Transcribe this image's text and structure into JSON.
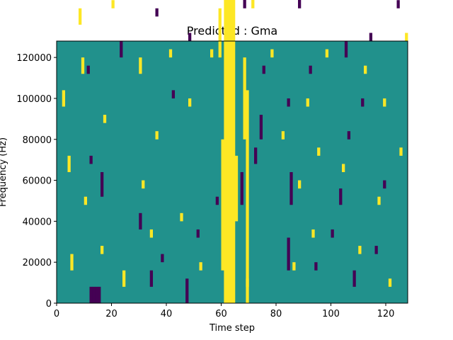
{
  "chart_data": {
    "type": "heatmap",
    "title": "Predicted : Gma",
    "xlabel": "Time step",
    "ylabel": "Frequency (Hz)",
    "xlim": [
      0,
      128
    ],
    "ylim": [
      0,
      128000
    ],
    "x_ticks": [
      0,
      20,
      40,
      60,
      80,
      100,
      120
    ],
    "y_ticks": [
      0,
      20000,
      40000,
      60000,
      80000,
      100000,
      120000
    ],
    "x_tick_labels": [
      "0",
      "20",
      "40",
      "60",
      "80",
      "100",
      "120"
    ],
    "y_tick_labels": [
      "0",
      "20000",
      "40000",
      "60000",
      "80000",
      "100000",
      "120000"
    ],
    "grid": false,
    "legend": "none",
    "value_levels": [
      -1,
      0,
      1
    ],
    "colors": {
      "-1": "#440154",
      "0": "#21918c",
      "1": "#fde725"
    },
    "background_value": 0,
    "bin_height_hz": 4000,
    "cells": [
      [
        61,
        0,
        64,
        1
      ],
      [
        62,
        0,
        64,
        1
      ],
      [
        63,
        0,
        64,
        1
      ],
      [
        64,
        0,
        64,
        1
      ],
      [
        60,
        4,
        16,
        1
      ],
      [
        65,
        10,
        8,
        1
      ],
      [
        59,
        30,
        6,
        1
      ],
      [
        65,
        45,
        6,
        1
      ],
      [
        60,
        55,
        8,
        1
      ],
      [
        65,
        75,
        8,
        1
      ],
      [
        62,
        64,
        30,
        1
      ],
      [
        61,
        96,
        4,
        1
      ],
      [
        69,
        2,
        24,
        1
      ],
      [
        68,
        20,
        10,
        1
      ],
      [
        70,
        44,
        5,
        1
      ],
      [
        71,
        36,
        3,
        1
      ],
      [
        70,
        56,
        2,
        1
      ],
      [
        70,
        84,
        3,
        1
      ],
      [
        68,
        64,
        1,
        1
      ],
      [
        69,
        0,
        3,
        1
      ],
      [
        67,
        12,
        4,
        -1
      ],
      [
        68,
        36,
        10,
        -1
      ],
      [
        69,
        46,
        4,
        -1
      ],
      [
        69,
        60,
        2,
        -1
      ],
      [
        70,
        52,
        6,
        -1
      ],
      [
        71,
        52,
        5,
        -1
      ],
      [
        69,
        68,
        2,
        -1
      ],
      [
        72,
        17,
        2,
        -1
      ],
      [
        66,
        68,
        3,
        -1
      ],
      [
        65,
        90,
        3,
        -1
      ],
      [
        64,
        98,
        2,
        -1
      ],
      [
        66,
        118,
        1,
        -1
      ],
      [
        12,
        0,
        2,
        -1
      ],
      [
        13,
        0,
        2,
        -1
      ],
      [
        14,
        0,
        2,
        -1
      ],
      [
        15,
        0,
        2,
        -1
      ],
      [
        12,
        17,
        1,
        -1
      ],
      [
        11,
        28,
        1,
        -1
      ],
      [
        16,
        13,
        3,
        -1
      ],
      [
        17,
        39,
        2,
        -1
      ],
      [
        19,
        55,
        1,
        -1
      ],
      [
        18,
        48,
        3,
        -1
      ],
      [
        23,
        30,
        2,
        -1
      ],
      [
        23,
        48,
        6,
        -1
      ],
      [
        25,
        95,
        2,
        -1
      ],
      [
        26,
        90,
        1,
        -1
      ],
      [
        28,
        76,
        2,
        -1
      ],
      [
        27,
        102,
        1,
        -1
      ],
      [
        24,
        113,
        1,
        -1
      ],
      [
        22,
        126,
        2,
        -1
      ],
      [
        30,
        9,
        2,
        -1
      ],
      [
        30,
        78,
        2,
        -1
      ],
      [
        32,
        55,
        1,
        -1
      ],
      [
        34,
        2,
        2,
        -1
      ],
      [
        36,
        35,
        1,
        -1
      ],
      [
        38,
        5,
        1,
        -1
      ],
      [
        40,
        44,
        1,
        -1
      ],
      [
        40,
        66,
        1,
        -1
      ],
      [
        42,
        25,
        1,
        -1
      ],
      [
        46,
        42,
        1,
        -1
      ],
      [
        47,
        0,
        3,
        -1
      ],
      [
        48,
        32,
        1,
        -1
      ],
      [
        49,
        62,
        1,
        -1
      ],
      [
        51,
        8,
        1,
        -1
      ],
      [
        53,
        72,
        1,
        -1
      ],
      [
        55,
        95,
        1,
        -1
      ],
      [
        56,
        44,
        1,
        -1
      ],
      [
        58,
        12,
        1,
        -1
      ],
      [
        58,
        100,
        1,
        -1
      ],
      [
        57,
        120,
        1,
        -1
      ],
      [
        36,
        115,
        1,
        -1
      ],
      [
        38,
        90,
        1,
        -1
      ],
      [
        73,
        60,
        2,
        -1
      ],
      [
        73,
        88,
        1,
        -1
      ],
      [
        74,
        20,
        3,
        -1
      ],
      [
        75,
        28,
        1,
        -1
      ],
      [
        76,
        38,
        1,
        -1
      ],
      [
        77,
        72,
        2,
        -1
      ],
      [
        78,
        76,
        2,
        1
      ],
      [
        79,
        76,
        2,
        -1
      ],
      [
        81,
        58,
        1,
        -1
      ],
      [
        83,
        44,
        1,
        -1
      ],
      [
        84,
        24,
        1,
        -1
      ],
      [
        84,
        4,
        4,
        -1
      ],
      [
        85,
        12,
        4,
        -1
      ],
      [
        86,
        52,
        2,
        -1
      ],
      [
        86,
        108,
        2,
        -1
      ],
      [
        88,
        36,
        2,
        -1
      ],
      [
        89,
        96,
        1,
        -1
      ],
      [
        90,
        64,
        1,
        -1
      ],
      [
        92,
        28,
        1,
        -1
      ],
      [
        94,
        4,
        1,
        -1
      ],
      [
        95,
        120,
        1,
        -1
      ],
      [
        96,
        52,
        1,
        -1
      ],
      [
        99,
        84,
        1,
        -1
      ],
      [
        100,
        8,
        1,
        -1
      ],
      [
        101,
        40,
        3,
        -1
      ],
      [
        102,
        48,
        4,
        -1
      ],
      [
        103,
        12,
        2,
        -1
      ],
      [
        104,
        70,
        2,
        -1
      ],
      [
        105,
        30,
        2,
        -1
      ],
      [
        106,
        20,
        1,
        -1
      ],
      [
        107,
        64,
        1,
        -1
      ],
      [
        108,
        2,
        2,
        -1
      ],
      [
        109,
        44,
        1,
        -1
      ],
      [
        110,
        108,
        1,
        -1
      ],
      [
        111,
        24,
        1,
        -1
      ],
      [
        112,
        58,
        1,
        -1
      ],
      [
        114,
        32,
        1,
        -1
      ],
      [
        115,
        76,
        1,
        -1
      ],
      [
        116,
        6,
        1,
        -1
      ],
      [
        118,
        104,
        1,
        -1
      ],
      [
        119,
        14,
        1,
        -1
      ],
      [
        121,
        82,
        1,
        -1
      ],
      [
        123,
        60,
        1,
        -1
      ],
      [
        124,
        36,
        1,
        -1
      ],
      [
        125,
        46,
        1,
        -1
      ],
      [
        126,
        66,
        1,
        -1
      ],
      [
        127,
        90,
        1,
        -1
      ],
      [
        97,
        114,
        1,
        -1
      ],
      [
        93,
        88,
        1,
        -1
      ],
      [
        91,
        100,
        1,
        -1
      ],
      [
        88,
        120,
        1,
        -1
      ],
      [
        80,
        110,
        1,
        -1
      ],
      [
        79,
        98,
        1,
        -1
      ],
      [
        78,
        90,
        1,
        -1
      ],
      [
        44,
        124,
        1,
        -1
      ],
      [
        33,
        106,
        1,
        -1
      ],
      [
        2,
        72,
        2,
        1
      ],
      [
        3,
        38,
        4,
        1
      ],
      [
        3,
        60,
        4,
        1
      ],
      [
        4,
        72,
        2,
        1
      ],
      [
        2,
        104,
        1,
        1
      ],
      [
        1,
        78,
        1,
        1
      ],
      [
        2,
        24,
        2,
        1
      ],
      [
        4,
        16,
        2,
        1
      ],
      [
        5,
        4,
        2,
        1
      ],
      [
        1,
        46,
        2,
        1
      ],
      [
        6,
        60,
        2,
        1
      ],
      [
        7,
        84,
        1,
        1
      ],
      [
        8,
        34,
        2,
        1
      ],
      [
        9,
        28,
        2,
        1
      ],
      [
        10,
        12,
        1,
        1
      ],
      [
        11,
        42,
        2,
        1
      ],
      [
        13,
        54,
        1,
        1
      ],
      [
        14,
        64,
        1,
        1
      ],
      [
        15,
        90,
        1,
        1
      ],
      [
        16,
        6,
        1,
        1
      ],
      [
        17,
        22,
        1,
        1
      ],
      [
        18,
        98,
        1,
        1
      ],
      [
        19,
        118,
        1,
        1
      ],
      [
        20,
        36,
        1,
        1
      ],
      [
        21,
        76,
        2,
        1
      ],
      [
        22,
        56,
        1,
        1
      ],
      [
        24,
        2,
        2,
        1
      ],
      [
        26,
        88,
        1,
        1
      ],
      [
        28,
        44,
        2,
        1
      ],
      [
        29,
        62,
        2,
        1
      ],
      [
        30,
        28,
        2,
        1
      ],
      [
        31,
        14,
        1,
        1
      ],
      [
        32,
        104,
        1,
        1
      ],
      [
        33,
        70,
        1,
        1
      ],
      [
        34,
        8,
        1,
        1
      ],
      [
        35,
        48,
        1,
        1
      ],
      [
        36,
        20,
        1,
        1
      ],
      [
        37,
        92,
        1,
        1
      ],
      [
        39,
        58,
        1,
        1
      ],
      [
        41,
        30,
        1,
        1
      ],
      [
        43,
        112,
        1,
        1
      ],
      [
        45,
        10,
        1,
        1
      ],
      [
        46,
        86,
        1,
        1
      ],
      [
        48,
        24,
        1,
        1
      ],
      [
        50,
        118,
        1,
        1
      ],
      [
        52,
        4,
        1,
        1
      ],
      [
        54,
        64,
        1,
        1
      ],
      [
        56,
        30,
        1,
        1
      ],
      [
        57,
        80,
        1,
        1
      ],
      [
        75,
        90,
        1,
        1
      ],
      [
        76,
        52,
        1,
        1
      ],
      [
        78,
        30,
        1,
        1
      ],
      [
        80,
        68,
        1,
        1
      ],
      [
        82,
        20,
        1,
        1
      ],
      [
        83,
        96,
        1,
        1
      ],
      [
        85,
        40,
        1,
        1
      ],
      [
        87,
        60,
        1,
        1
      ],
      [
        88,
        14,
        1,
        1
      ],
      [
        89,
        38,
        2,
        1
      ],
      [
        90,
        76,
        1,
        1
      ],
      [
        91,
        24,
        1,
        1
      ],
      [
        92,
        44,
        1,
        1
      ],
      [
        93,
        8,
        1,
        1
      ],
      [
        94,
        66,
        1,
        1
      ],
      [
        96,
        104,
        1,
        1
      ],
      [
        98,
        30,
        1,
        1
      ],
      [
        100,
        52,
        1,
        1
      ],
      [
        102,
        84,
        1,
        1
      ],
      [
        104,
        16,
        1,
        1
      ],
      [
        106,
        42,
        1,
        1
      ],
      [
        108,
        70,
        1,
        1
      ],
      [
        110,
        6,
        1,
        1
      ],
      [
        112,
        28,
        1,
        1
      ],
      [
        113,
        96,
        1,
        1
      ],
      [
        114,
        48,
        1,
        1
      ],
      [
        116,
        80,
        1,
        1
      ],
      [
        117,
        12,
        1,
        1
      ],
      [
        118,
        60,
        1,
        1
      ],
      [
        119,
        24,
        1,
        1
      ],
      [
        120,
        76,
        1,
        1
      ],
      [
        121,
        2,
        1,
        1
      ],
      [
        122,
        40,
        1,
        1
      ],
      [
        123,
        108,
        1,
        1
      ],
      [
        124,
        64,
        1,
        1
      ],
      [
        125,
        18,
        1,
        1
      ],
      [
        126,
        88,
        1,
        1
      ],
      [
        127,
        32,
        1,
        1
      ],
      [
        95,
        18,
        1,
        1
      ],
      [
        86,
        4,
        1,
        1
      ],
      [
        77,
        112,
        1,
        1
      ],
      [
        72,
        124,
        1,
        1
      ],
      [
        63,
        118,
        1,
        1
      ],
      [
        53,
        112,
        1,
        1
      ],
      [
        40,
        100,
        1,
        1
      ],
      [
        31,
        124,
        1,
        1
      ],
      [
        12,
        110,
        1,
        1
      ],
      [
        6,
        98,
        1,
        1
      ]
    ]
  }
}
